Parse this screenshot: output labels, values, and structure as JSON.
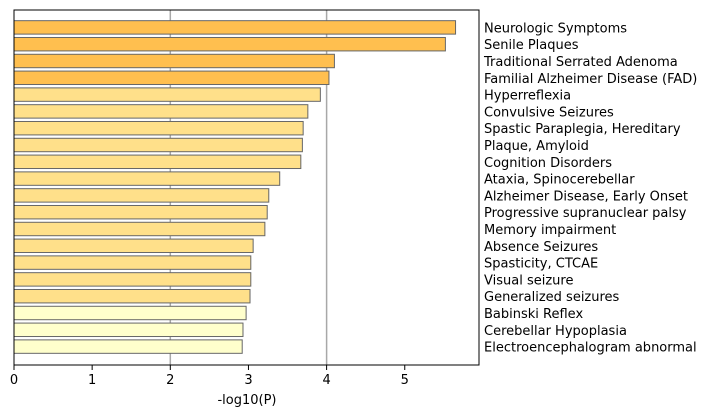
{
  "chart_data": {
    "type": "bar",
    "orientation": "horizontal",
    "title": "",
    "xlabel": "-log10(P)",
    "ylabel": "",
    "xlim": [
      0,
      5.95
    ],
    "xticks": [
      0,
      1,
      2,
      3,
      4,
      5
    ],
    "vlines": [
      2,
      4
    ],
    "grid": false,
    "legend": "none",
    "category_label_side": "right",
    "categories": [
      "Neurologic Symptoms",
      "Senile Plaques",
      "Traditional Serrated Adenoma",
      "Familial Alzheimer Disease (FAD)",
      "Hyperreflexia",
      "Convulsive Seizures",
      "Spastic Paraplegia, Hereditary",
      "Plaque, Amyloid",
      "Cognition Disorders",
      "Ataxia, Spinocerebellar",
      "Alzheimer Disease, Early Onset",
      "Progressive supranuclear palsy",
      "Memory impairment",
      "Absence Seizures",
      "Spasticity, CTCAE",
      "Visual seizure",
      "Generalized seizures",
      "Babinski Reflex",
      "Cerebellar Hypoplasia",
      "Electroencephalogram abnormal"
    ],
    "values": [
      5.65,
      5.52,
      4.1,
      4.03,
      3.92,
      3.76,
      3.7,
      3.69,
      3.67,
      3.4,
      3.26,
      3.24,
      3.21,
      3.06,
      3.03,
      3.03,
      3.02,
      2.97,
      2.93,
      2.92
    ],
    "colors": [
      "#ffbf4f",
      "#ffbf4f",
      "#ffbf4f",
      "#ffbf4f",
      "#ffe08a",
      "#ffe08a",
      "#ffe08a",
      "#ffe08a",
      "#ffe08a",
      "#ffe08a",
      "#ffe08a",
      "#ffe08a",
      "#ffe08a",
      "#ffe08a",
      "#ffe08a",
      "#ffe08a",
      "#ffe08a",
      "#ffffcc",
      "#ffffcc",
      "#ffffcc"
    ],
    "bar_edge_color": "#666666",
    "vline_color": "#a8a8a8"
  }
}
